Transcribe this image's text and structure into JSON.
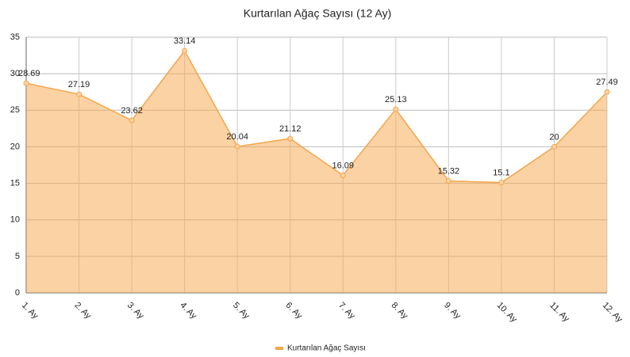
{
  "chart_data": {
    "type": "area",
    "title": "Kurtarılan Ağaç Sayısı (12 Ay)",
    "categories": [
      "1. Ay",
      "2. Ay",
      "3. Ay",
      "4. Ay",
      "5. Ay",
      "6. Ay",
      "7. Ay",
      "8. Ay",
      "9. Ay",
      "10. Ay",
      "11. Ay",
      "12. Ay"
    ],
    "series": [
      {
        "name": "Kurtarılan Ağaç Sayısı",
        "color": "#f5a54a",
        "values": [
          28.69,
          27.19,
          23.62,
          33.14,
          20.04,
          21.12,
          16.09,
          25.13,
          15.32,
          15.1,
          20,
          27.49
        ]
      }
    ],
    "ylim": [
      0,
      35
    ],
    "yticks": [
      0,
      5,
      10,
      15,
      20,
      25,
      30,
      35
    ],
    "grid": true,
    "legend": "bottom"
  }
}
